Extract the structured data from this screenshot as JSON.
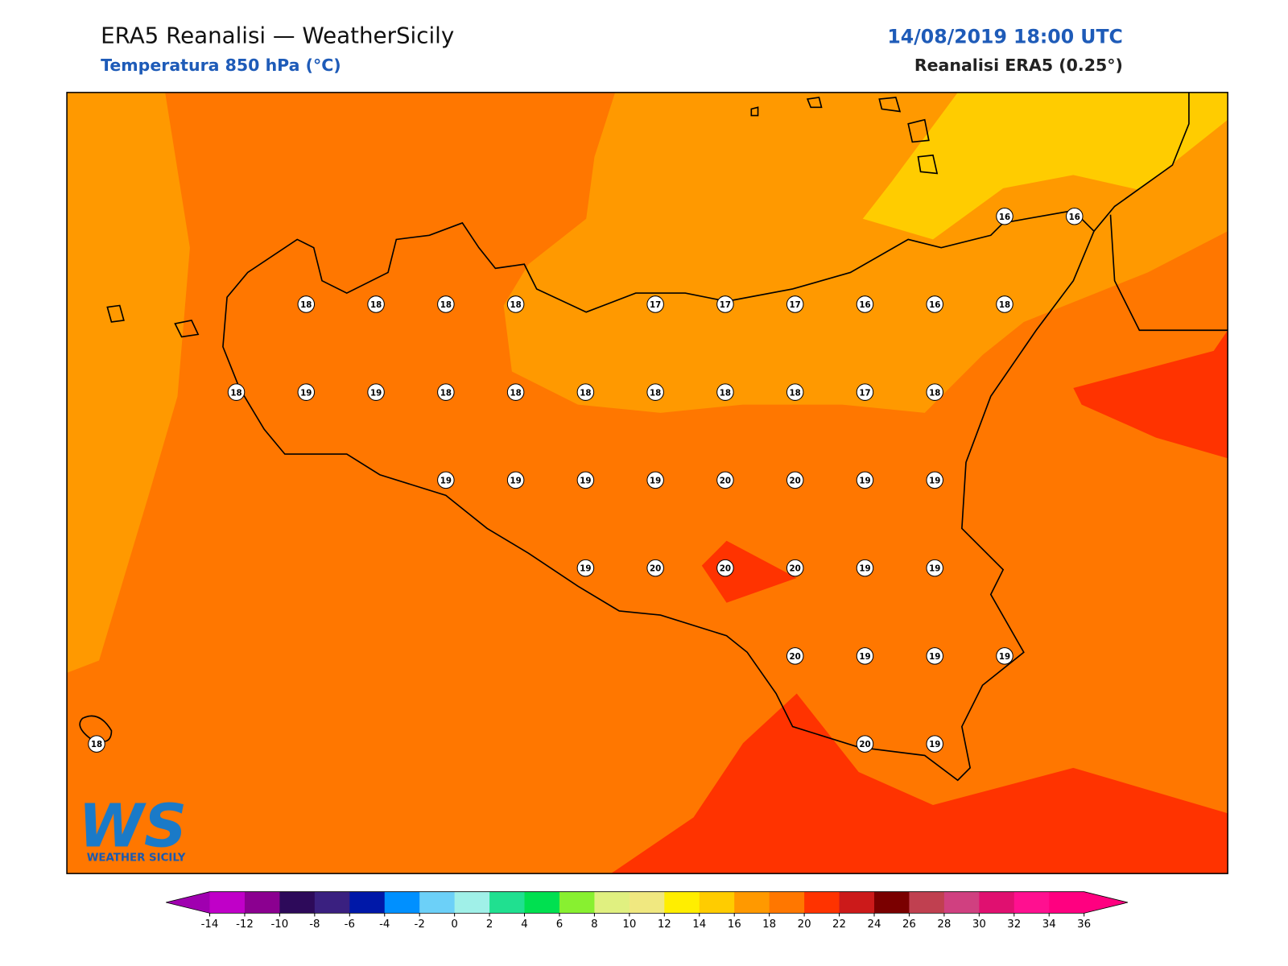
{
  "header": {
    "title": "ERA5 Reanalisi — WeatherSicily",
    "subtitle": "Temperatura 850 hPa (°C)",
    "datetime": "14/08/2019 18:00 UTC",
    "source": "Reanalisi ERA5 (0.25°)"
  },
  "points": [
    16,
    16,
    18,
    18,
    18,
    18,
    17,
    17,
    17,
    16,
    16,
    18,
    18,
    19,
    19,
    18,
    18,
    18,
    18,
    18,
    18,
    17,
    18,
    19,
    19,
    19,
    19,
    20,
    20,
    19,
    19,
    19,
    20,
    20,
    20,
    19,
    19,
    20,
    19,
    19,
    19,
    18,
    20,
    19
  ],
  "colorbar": {
    "ticks": [
      -14,
      -12,
      -10,
      -8,
      -6,
      -4,
      -2,
      0,
      2,
      4,
      6,
      8,
      10,
      12,
      14,
      16,
      18,
      20,
      22,
      24,
      26,
      28,
      30,
      32,
      34,
      36
    ],
    "colors": [
      "#c000c8",
      "#8b0090",
      "#2d0a5a",
      "#3a2080",
      "#0018a8",
      "#0090ff",
      "#6cd0f8",
      "#a0f0e8",
      "#20e090",
      "#00e050",
      "#88f030",
      "#e0f080",
      "#f0e880",
      "#ffee00",
      "#ffcc00",
      "#ff9900",
      "#ff7700",
      "#ff3300",
      "#cc1a1a",
      "#7a0000",
      "#c04050",
      "#d04080",
      "#e01070",
      "#ff1090",
      "#ff0080"
    ],
    "under": "#a000b0",
    "over": "#ff0080"
  },
  "logo": {
    "text": "WS",
    "caption": "WEATHER SICILY"
  }
}
